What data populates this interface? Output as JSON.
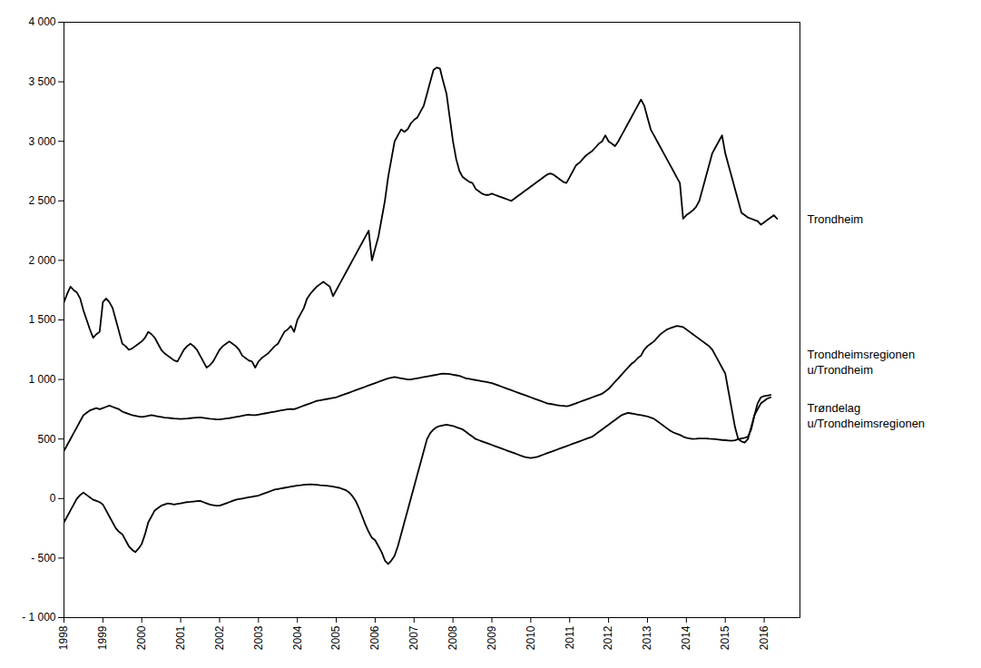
{
  "chart_data": {
    "type": "line",
    "x": [
      1998,
      1998.083333,
      1998.166667,
      1998.25,
      1998.333333,
      1998.416667,
      1998.5,
      1998.583333,
      1998.666667,
      1998.75,
      1998.833333,
      1998.916667,
      1999,
      1999.083333,
      1999.166667,
      1999.25,
      1999.333333,
      1999.416667,
      1999.5,
      1999.583333,
      1999.666667,
      1999.75,
      1999.833333,
      1999.916667,
      2000,
      2000.083333,
      2000.166667,
      2000.25,
      2000.333333,
      2000.416667,
      2000.5,
      2000.583333,
      2000.666667,
      2000.75,
      2000.833333,
      2000.916667,
      2001,
      2001.083333,
      2001.166667,
      2001.25,
      2001.333333,
      2001.416667,
      2001.5,
      2001.583333,
      2001.666667,
      2001.75,
      2001.833333,
      2001.916667,
      2002,
      2002.083333,
      2002.166667,
      2002.25,
      2002.333333,
      2002.416667,
      2002.5,
      2002.583333,
      2002.666667,
      2002.75,
      2002.833333,
      2002.916667,
      2003,
      2003.083333,
      2003.166667,
      2003.25,
      2003.333333,
      2003.416667,
      2003.5,
      2003.583333,
      2003.666667,
      2003.75,
      2003.833333,
      2003.916667,
      2004,
      2004.083333,
      2004.166667,
      2004.25,
      2004.333333,
      2004.416667,
      2004.5,
      2004.583333,
      2004.666667,
      2004.75,
      2004.833333,
      2004.916667,
      2005,
      2005.083333,
      2005.166667,
      2005.25,
      2005.333333,
      2005.416667,
      2005.5,
      2005.583333,
      2005.666667,
      2005.75,
      2005.833333,
      2005.916667,
      2006,
      2006.083333,
      2006.166667,
      2006.25,
      2006.333333,
      2006.416667,
      2006.5,
      2006.583333,
      2006.666667,
      2006.75,
      2006.833333,
      2006.916667,
      2007,
      2007.083333,
      2007.166667,
      2007.25,
      2007.333333,
      2007.416667,
      2007.5,
      2007.583333,
      2007.666667,
      2007.75,
      2007.833333,
      2007.916667,
      2008,
      2008.083333,
      2008.166667,
      2008.25,
      2008.333333,
      2008.416667,
      2008.5,
      2008.583333,
      2008.666667,
      2008.75,
      2008.833333,
      2008.916667,
      2009,
      2009.083333,
      2009.166667,
      2009.25,
      2009.333333,
      2009.416667,
      2009.5,
      2009.583333,
      2009.666667,
      2009.75,
      2009.833333,
      2009.916667,
      2010,
      2010.083333,
      2010.166667,
      2010.25,
      2010.333333,
      2010.416667,
      2010.5,
      2010.583333,
      2010.666667,
      2010.75,
      2010.833333,
      2010.916667,
      2011,
      2011.083333,
      2011.166667,
      2011.25,
      2011.333333,
      2011.416667,
      2011.5,
      2011.583333,
      2011.666667,
      2011.75,
      2011.833333,
      2011.916667,
      2012,
      2012.083333,
      2012.166667,
      2012.25,
      2012.333333,
      2012.416667,
      2012.5,
      2012.583333,
      2012.666667,
      2012.75,
      2012.833333,
      2012.916667,
      2013,
      2013.083333,
      2013.166667,
      2013.25,
      2013.333333,
      2013.416667,
      2013.5,
      2013.583333,
      2013.666667,
      2013.75,
      2013.833333,
      2013.916667,
      2014,
      2014.083333,
      2014.166667,
      2014.25,
      2014.333333,
      2014.416667,
      2014.5,
      2014.583333,
      2014.666667,
      2014.75,
      2014.833333,
      2014.916667,
      2015,
      2015.083333,
      2015.166667,
      2015.25,
      2015.333333,
      2015.416667,
      2015.5,
      2015.583333,
      2015.666667,
      2015.75,
      2015.833333,
      2015.916667,
      2016,
      2016.083333,
      2016.166667,
      2016.25,
      2016.333333
    ],
    "series": [
      {
        "name": "Trondheim",
        "values": [
          1650,
          1720,
          1780,
          1750,
          1730,
          1680,
          1580,
          1500,
          1420,
          1350,
          1380,
          1400,
          1650,
          1680,
          1650,
          1600,
          1500,
          1400,
          1300,
          1280,
          1250,
          1260,
          1280,
          1300,
          1320,
          1350,
          1400,
          1380,
          1350,
          1300,
          1250,
          1220,
          1200,
          1180,
          1160,
          1150,
          1200,
          1250,
          1280,
          1300,
          1280,
          1250,
          1200,
          1150,
          1100,
          1120,
          1150,
          1200,
          1250,
          1280,
          1300,
          1320,
          1300,
          1280,
          1250,
          1200,
          1180,
          1160,
          1150,
          1100,
          1150,
          1180,
          1200,
          1220,
          1250,
          1280,
          1300,
          1350,
          1400,
          1420,
          1450,
          1400,
          1500,
          1550,
          1600,
          1680,
          1720,
          1750,
          1780,
          1800,
          1820,
          1800,
          1780,
          1700,
          1750,
          1800,
          1850,
          1900,
          1950,
          2000,
          2050,
          2100,
          2150,
          2200,
          2250,
          2000,
          2100,
          2200,
          2350,
          2500,
          2700,
          2850,
          3000,
          3050,
          3100,
          3080,
          3100,
          3150,
          3180,
          3200,
          3250,
          3300,
          3400,
          3500,
          3600,
          3620,
          3610,
          3500,
          3400,
          3200,
          3000,
          2850,
          2750,
          2700,
          2680,
          2660,
          2650,
          2600,
          2580,
          2560,
          2550,
          2550,
          2560,
          2550,
          2540,
          2530,
          2520,
          2510,
          2500,
          2520,
          2540,
          2560,
          2580,
          2600,
          2620,
          2640,
          2660,
          2680,
          2700,
          2720,
          2730,
          2720,
          2700,
          2680,
          2660,
          2650,
          2700,
          2750,
          2800,
          2820,
          2850,
          2880,
          2900,
          2920,
          2950,
          2980,
          3000,
          3050,
          3000,
          2980,
          2960,
          3000,
          3050,
          3100,
          3150,
          3200,
          3250,
          3300,
          3350,
          3300,
          3200,
          3100,
          3050,
          3000,
          2950,
          2900,
          2850,
          2800,
          2750,
          2700,
          2650,
          2350,
          2380,
          2400,
          2420,
          2450,
          2500,
          2600,
          2700,
          2800,
          2900,
          2950,
          3000,
          3050,
          2900,
          2800,
          2700,
          2600,
          2500,
          2400,
          2380,
          2360,
          2350,
          2340,
          2330,
          2300,
          2320,
          2340,
          2360,
          2380,
          2350
        ]
      },
      {
        "name": "Trondheimsregionen\nu/Trondheim",
        "values": [
          400,
          450,
          500,
          550,
          600,
          650,
          700,
          720,
          740,
          750,
          760,
          750,
          760,
          770,
          780,
          770,
          760,
          750,
          730,
          720,
          710,
          700,
          695,
          690,
          685,
          690,
          695,
          700,
          695,
          690,
          685,
          680,
          678,
          675,
          672,
          670,
          668,
          670,
          672,
          675,
          678,
          680,
          682,
          678,
          674,
          670,
          668,
          665,
          665,
          668,
          672,
          675,
          680,
          685,
          690,
          695,
          700,
          705,
          700,
          700,
          705,
          710,
          715,
          720,
          725,
          730,
          735,
          740,
          745,
          750,
          752,
          750,
          760,
          770,
          780,
          790,
          800,
          810,
          820,
          825,
          830,
          835,
          840,
          845,
          850,
          860,
          870,
          880,
          890,
          900,
          910,
          920,
          930,
          940,
          950,
          960,
          970,
          980,
          990,
          1000,
          1010,
          1015,
          1020,
          1015,
          1010,
          1005,
          1000,
          1000,
          1005,
          1010,
          1015,
          1020,
          1025,
          1030,
          1035,
          1040,
          1045,
          1050,
          1048,
          1045,
          1040,
          1035,
          1030,
          1020,
          1010,
          1005,
          1000,
          995,
          990,
          985,
          980,
          975,
          970,
          960,
          950,
          940,
          930,
          920,
          910,
          900,
          890,
          880,
          870,
          860,
          850,
          840,
          830,
          820,
          810,
          800,
          795,
          790,
          785,
          780,
          778,
          775,
          780,
          790,
          800,
          810,
          820,
          830,
          840,
          850,
          860,
          870,
          880,
          900,
          920,
          950,
          980,
          1010,
          1040,
          1070,
          1100,
          1130,
          1150,
          1180,
          1200,
          1250,
          1280,
          1300,
          1320,
          1350,
          1380,
          1400,
          1420,
          1430,
          1440,
          1450,
          1445,
          1440,
          1420,
          1400,
          1380,
          1360,
          1340,
          1320,
          1300,
          1280,
          1250,
          1200,
          1150,
          1100,
          1050,
          900,
          750,
          600,
          500,
          480,
          470,
          500,
          600,
          700,
          750,
          800,
          820,
          840,
          850,
          null,
          null
        ]
      },
      {
        "name": "Trøndelag\nu/Trondheimsregionen",
        "values": [
          -200,
          -150,
          -100,
          -50,
          0,
          30,
          50,
          30,
          10,
          -10,
          -20,
          -30,
          -50,
          -100,
          -150,
          -200,
          -250,
          -280,
          -300,
          -350,
          -400,
          -430,
          -450,
          -420,
          -380,
          -300,
          -200,
          -150,
          -100,
          -80,
          -60,
          -50,
          -40,
          -45,
          -50,
          -45,
          -40,
          -35,
          -30,
          -28,
          -25,
          -22,
          -20,
          -30,
          -40,
          -50,
          -55,
          -60,
          -60,
          -50,
          -40,
          -30,
          -20,
          -10,
          -5,
          0,
          5,
          10,
          15,
          20,
          25,
          35,
          45,
          55,
          65,
          75,
          80,
          85,
          90,
          95,
          100,
          105,
          110,
          112,
          115,
          118,
          120,
          118,
          115,
          112,
          110,
          108,
          105,
          100,
          95,
          90,
          80,
          70,
          50,
          20,
          -20,
          -80,
          -150,
          -220,
          -280,
          -330,
          -350,
          -400,
          -450,
          -520,
          -550,
          -520,
          -480,
          -400,
          -300,
          -200,
          -100,
          0,
          100,
          200,
          300,
          400,
          500,
          550,
          580,
          600,
          610,
          615,
          620,
          615,
          610,
          600,
          590,
          580,
          560,
          540,
          520,
          500,
          490,
          480,
          470,
          460,
          450,
          440,
          430,
          420,
          410,
          400,
          390,
          380,
          370,
          360,
          350,
          345,
          340,
          345,
          350,
          360,
          370,
          380,
          390,
          400,
          410,
          420,
          430,
          440,
          450,
          460,
          470,
          480,
          490,
          500,
          510,
          520,
          540,
          560,
          580,
          600,
          620,
          640,
          660,
          680,
          700,
          710,
          720,
          715,
          710,
          705,
          700,
          695,
          690,
          680,
          670,
          650,
          630,
          610,
          590,
          570,
          555,
          545,
          535,
          520,
          510,
          505,
          500,
          502,
          505,
          505,
          505,
          502,
          500,
          498,
          495,
          492,
          490,
          488,
          485,
          490,
          498,
          505,
          510,
          520,
          580,
          700,
          800,
          850,
          860,
          865,
          870,
          null,
          null
        ]
      }
    ],
    "xlim": [
      1998,
      2016.92
    ],
    "xticks": [
      1998,
      1999,
      2000,
      2001,
      2002,
      2003,
      2004,
      2005,
      2006,
      2007,
      2008,
      2009,
      2010,
      2011,
      2012,
      2013,
      2014,
      2015,
      2016
    ],
    "ylim": [
      -1000,
      4000
    ],
    "yticks": [
      {
        "value": -1000,
        "label": "- 1 000"
      },
      {
        "value": -500,
        "label": "- 500"
      },
      0,
      500,
      {
        "value": 1000,
        "label": "1 000"
      },
      {
        "value": 1500,
        "label": "1 500"
      },
      {
        "value": 2000,
        "label": "2 000"
      },
      {
        "value": 2500,
        "label": "2 500"
      },
      {
        "value": 3000,
        "label": "3 000"
      },
      {
        "value": 3500,
        "label": "3 500"
      },
      {
        "value": 4000,
        "label": "4 000"
      }
    ],
    "grid": false,
    "annotations": [
      {
        "text": "Trondheim",
        "y": 2350
      },
      {
        "text": "Trondheimsregionen\nu/Trondheim",
        "y": 1150
      },
      {
        "text": "Trøndelag\nu/Trondheimsregionen",
        "y": 700
      }
    ]
  }
}
